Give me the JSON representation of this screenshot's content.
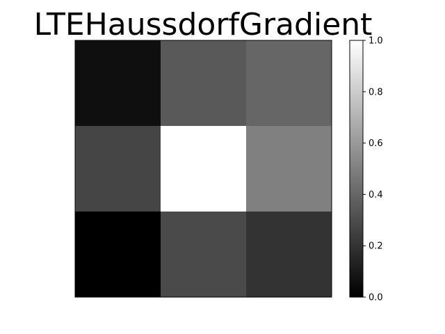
{
  "chart_data": {
    "type": "heatmap",
    "title": "LTEHaussdorfGradient",
    "xlabel": "",
    "ylabel": "",
    "rows": 3,
    "cols": 3,
    "values": [
      [
        0.06,
        0.35,
        0.4
      ],
      [
        0.27,
        1.0,
        0.5
      ],
      [
        0.0,
        0.29,
        0.2
      ]
    ],
    "colormap": "gray",
    "colorbar": {
      "range": [
        0.0,
        1.0
      ],
      "ticks": [
        0.0,
        0.2,
        0.4,
        0.6,
        0.8,
        1.0
      ],
      "tick_labels": [
        "0.0",
        "0.2",
        "0.4",
        "0.6",
        "0.8",
        "1.0"
      ]
    },
    "grid": false,
    "axis_ticks": false
  }
}
